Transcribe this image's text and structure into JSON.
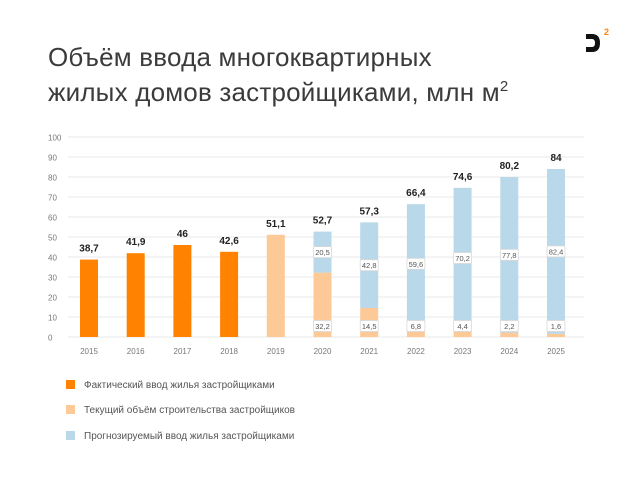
{
  "page": {
    "title_line1": "Объём ввода многоквартирных",
    "title_line2": "жилых домов застройщиками, млн м",
    "title_sup": "2",
    "logo_sup": "2"
  },
  "colors": {
    "actual": "#ff8200",
    "current": "#fdc997",
    "forecast": "#b9d8e9",
    "grid": "#e9e9e9",
    "axis_text": "#777777",
    "logo": "#111111",
    "logo_accent": "#ff8200"
  },
  "chart_data": {
    "type": "bar",
    "stacked": true,
    "categories": [
      "2015",
      "2016",
      "2017",
      "2018",
      "2019",
      "2020",
      "2021",
      "2022",
      "2023",
      "2024",
      "2025"
    ],
    "series": [
      {
        "name": "Фактический ввод жилья застройщиками",
        "color": "#ff8200",
        "values": [
          38.7,
          41.9,
          46,
          42.6,
          0,
          0,
          0,
          0,
          0,
          0,
          0
        ]
      },
      {
        "name": "Текущий объём строительства застройщиков",
        "color": "#fdc997",
        "values": [
          0,
          0,
          0,
          0,
          51.1,
          32.2,
          14.5,
          6.8,
          4.4,
          2.2,
          1.6
        ]
      },
      {
        "name": "Прогнозируемый ввод жилья застройщиками",
        "color": "#b9d8e9",
        "values": [
          0,
          0,
          0,
          0,
          0,
          20.5,
          42.8,
          59.6,
          70.2,
          77.8,
          82.4
        ]
      }
    ],
    "totals": [
      "38,7",
      "41,9",
      "46",
      "42,6",
      "51,1",
      "52,7",
      "57,3",
      "66,4",
      "74,6",
      "80,2",
      "84"
    ],
    "segment_labels": {
      "current": [
        "",
        "",
        "",
        "",
        "",
        "32,2",
        "14,5",
        "6,8",
        "4,4",
        "2,2",
        "1,6"
      ],
      "forecast": [
        "",
        "",
        "",
        "",
        "",
        "20,5",
        "42,8",
        "59,6",
        "70,2",
        "77,8",
        "82,4"
      ]
    },
    "ylim": [
      0,
      100
    ],
    "yticks": [
      0,
      10,
      20,
      30,
      40,
      50,
      60,
      70,
      80,
      90,
      100
    ],
    "grid": true,
    "legend_position": "bottom-left"
  }
}
